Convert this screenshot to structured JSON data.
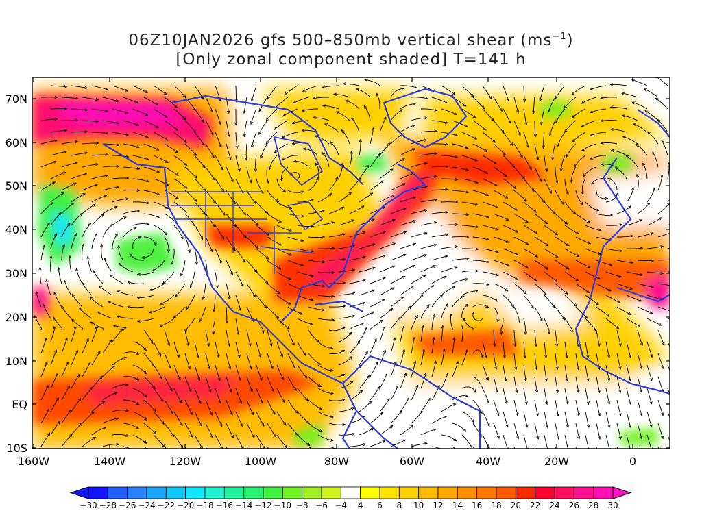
{
  "title": {
    "line1_pre": "06Z10JAN2026 gfs 500–850mb vertical shear (ms",
    "line1_sup": "−1",
    "line1_post": ")",
    "line2": "[Only zonal component shaded] T=141 h"
  },
  "map": {
    "lat_labels": [
      "70N",
      "60N",
      "50N",
      "40N",
      "30N",
      "20N",
      "10N",
      "EQ",
      "10S"
    ],
    "lon_labels": [
      "160W",
      "140W",
      "120W",
      "100W",
      "80W",
      "60W",
      "40W",
      "20W",
      "0"
    ],
    "coastline_color": "#2b3bd8",
    "streamline_color": "#000000"
  },
  "colorbar": {
    "labels": [
      "−30",
      "−28",
      "−26",
      "−24",
      "−22",
      "−20",
      "−18",
      "−16",
      "−14",
      "−12",
      "−10",
      "−8",
      "−6",
      "−4",
      "4",
      "6",
      "8",
      "10",
      "12",
      "14",
      "16",
      "18",
      "20",
      "22",
      "24",
      "26",
      "28",
      "30"
    ],
    "colors": [
      "#1414ff",
      "#2060ff",
      "#2a82ff",
      "#1ea6ff",
      "#10c8ff",
      "#10e6ff",
      "#1ef0d0",
      "#20f0a0",
      "#28f070",
      "#40f040",
      "#70f020",
      "#a0f020",
      "#d0f020",
      "#ffffff",
      "#ffff00",
      "#ffe400",
      "#ffd000",
      "#ffbc00",
      "#ffa800",
      "#ff9000",
      "#ff7800",
      "#ff5a00",
      "#ff2a00",
      "#ff0030",
      "#ff1060",
      "#ff1090",
      "#ff10b0"
    ],
    "arrow_low_color": "#1414ff",
    "arrow_high_color": "#ff10c0"
  }
}
